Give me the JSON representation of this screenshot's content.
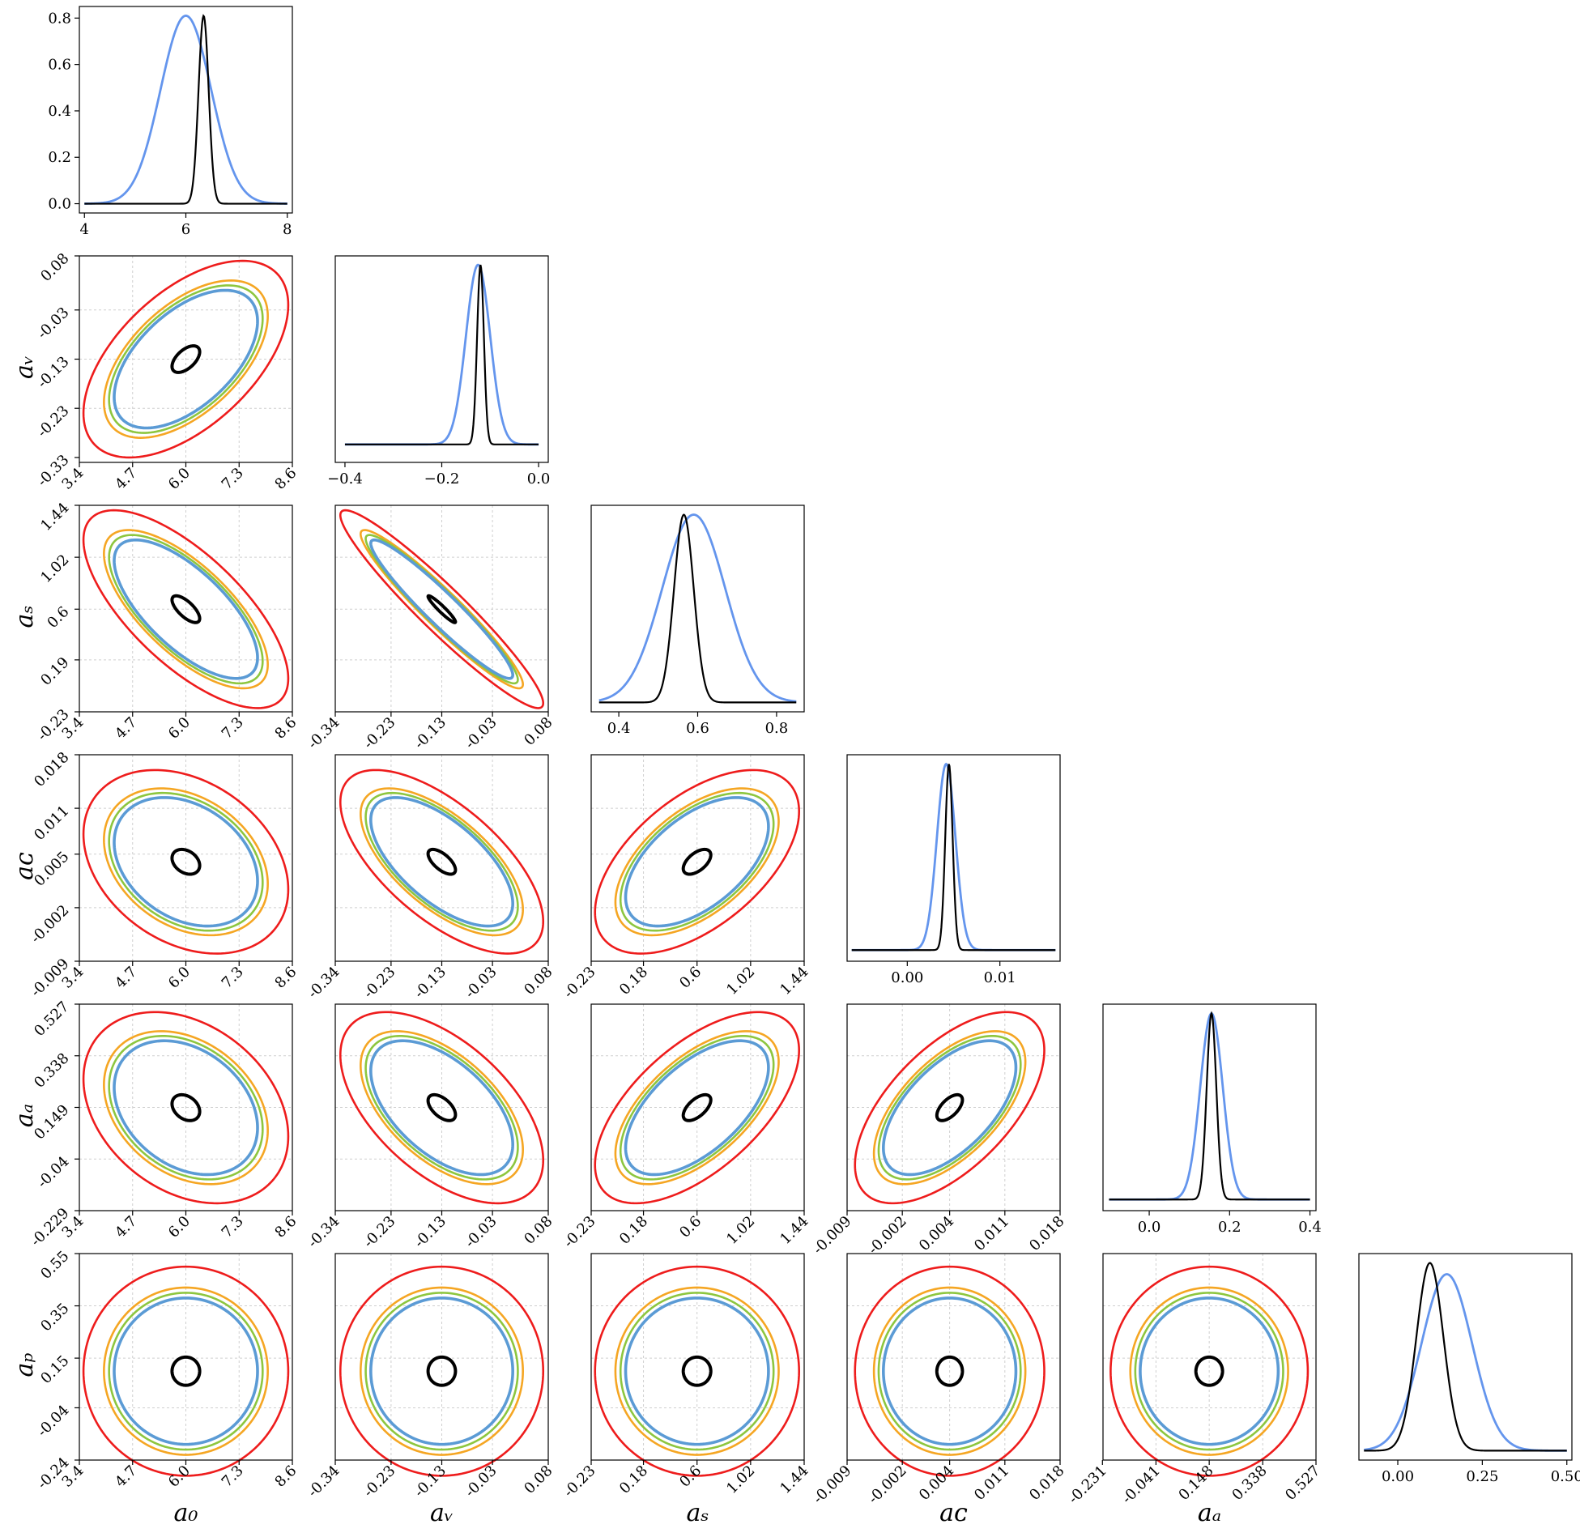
{
  "chart_data": {
    "type": "corner",
    "parameters": [
      {
        "name": "a0",
        "label": "a₀"
      },
      {
        "name": "aV",
        "label": "aᵥ"
      },
      {
        "name": "aS",
        "label": "aₛ"
      },
      {
        "name": "aC",
        "label": "aᴄ"
      },
      {
        "name": "aA",
        "label": "aₐ"
      },
      {
        "name": "aP",
        "label": "aₚ"
      }
    ],
    "centers": [
      6.0,
      -0.13,
      0.6,
      0.004,
      0.148,
      0.1
    ],
    "series_colors": {
      "contour_outer": "#ee1c1c",
      "contour_2": "#f5a623",
      "contour_3": "#8dc63f",
      "contour_4": "#5b9bd5",
      "contour_inner": "#000000",
      "marginal_wide": "#6495ed",
      "marginal_narrow": "#000000"
    },
    "diagonal": [
      {
        "param": "a0",
        "xlim": [
          3.9,
          8.1
        ],
        "ylim": [
          -0.04,
          0.85
        ],
        "xticks": [
          "4",
          "6",
          "8"
        ],
        "xtick_values": [
          4,
          6,
          8
        ],
        "yticks": [
          "0.0",
          "0.2",
          "0.4",
          "0.6",
          "0.8"
        ],
        "ytick_values": [
          0.0,
          0.2,
          0.4,
          0.6,
          0.8
        ],
        "curve_range": [
          4,
          8
        ],
        "wide": {
          "mean": 6.0,
          "sd": 0.5,
          "peak": 0.81
        },
        "narrow": {
          "mean": 6.35,
          "sd": 0.1,
          "peak": 0.81
        }
      },
      {
        "param": "aV",
        "xlim": [
          -0.42,
          0.02
        ],
        "ylim": [
          -0.1,
          1.05
        ],
        "xticks": [
          "−0.4",
          "−0.2",
          "0.0"
        ],
        "xtick_values": [
          -0.4,
          -0.2,
          0.0
        ],
        "curve_range": [
          -0.4,
          0.0
        ],
        "wide": {
          "mean": -0.125,
          "sd": 0.025,
          "peak": 1.0
        },
        "narrow": {
          "mean": -0.12,
          "sd": 0.007,
          "peak": 1.0
        }
      },
      {
        "param": "aS",
        "xlim": [
          0.33,
          0.87
        ],
        "ylim": [
          -0.05,
          1.05
        ],
        "xticks": [
          "0.4",
          "0.6",
          "0.8"
        ],
        "xtick_values": [
          0.4,
          0.6,
          0.8
        ],
        "curve_range": [
          0.35,
          0.85
        ],
        "wide": {
          "mean": 0.59,
          "sd": 0.08,
          "peak": 1.0
        },
        "narrow": {
          "mean": 0.565,
          "sd": 0.025,
          "peak": 1.0
        }
      },
      {
        "param": "aC",
        "xlim": [
          -0.0065,
          0.0165
        ],
        "ylim": [
          -0.06,
          1.05
        ],
        "xticks": [
          "0.00",
          "0.01"
        ],
        "xtick_values": [
          0.0,
          0.01
        ],
        "curve_range": [
          -0.006,
          0.016
        ],
        "wide": {
          "mean": 0.0042,
          "sd": 0.001,
          "peak": 1.0
        },
        "narrow": {
          "mean": 0.0045,
          "sd": 0.0004,
          "peak": 1.0
        }
      },
      {
        "param": "aA",
        "xlim": [
          -0.115,
          0.415
        ],
        "ylim": [
          -0.06,
          1.05
        ],
        "xticks": [
          "0.0",
          "0.2",
          "0.4"
        ],
        "xtick_values": [
          0.0,
          0.2,
          0.4
        ],
        "curve_range": [
          -0.1,
          0.4
        ],
        "wide": {
          "mean": 0.155,
          "sd": 0.028,
          "peak": 1.0
        },
        "narrow": {
          "mean": 0.155,
          "sd": 0.012,
          "peak": 1.0
        }
      },
      {
        "param": "aP",
        "xlim": [
          -0.115,
          0.515
        ],
        "ylim": [
          -0.05,
          1.05
        ],
        "xticks": [
          "0.00",
          "0.25",
          "0.50"
        ],
        "xtick_values": [
          0.0,
          0.25,
          0.5
        ],
        "curve_range": [
          -0.1,
          0.5
        ],
        "wide": {
          "mean": 0.145,
          "sd": 0.075,
          "peak": 0.94
        },
        "narrow": {
          "mean": 0.095,
          "sd": 0.04,
          "peak": 1.0
        }
      }
    ],
    "offdiag_axes": [
      {
        "param": "a0",
        "lim": [
          3.4,
          8.6
        ],
        "ticks": [
          "3.4",
          "4.7",
          "6.0",
          "7.3",
          "8.6"
        ],
        "tick_values": [
          3.4,
          4.7,
          6.0,
          7.3,
          8.6
        ]
      },
      {
        "param": "aV",
        "lim": [
          -0.34,
          0.08
        ],
        "ticks": [
          "-0.34",
          "-0.23",
          "-0.13",
          "-0.03",
          "0.08"
        ],
        "tick_values": [
          -0.34,
          -0.23,
          -0.13,
          -0.03,
          0.08
        ],
        "yticks": [
          "-0.33",
          "-0.23",
          "-0.13",
          "-0.03",
          "0.08"
        ],
        "ytick_values": [
          -0.33,
          -0.23,
          -0.13,
          -0.03,
          0.08
        ]
      },
      {
        "param": "aS",
        "lim": [
          -0.23,
          1.44
        ],
        "ticks": [
          "-0.23",
          "0.18",
          "0.6",
          "1.02",
          "1.44"
        ],
        "tick_values": [
          -0.23,
          0.18,
          0.6,
          1.02,
          1.44
        ],
        "yticks": [
          "-0.23",
          "0.19",
          "0.6",
          "1.02",
          "1.44"
        ],
        "ytick_values": [
          -0.23,
          0.19,
          0.6,
          1.02,
          1.44
        ]
      },
      {
        "param": "aC",
        "lim": [
          -0.009,
          0.018
        ],
        "ticks": [
          "-0.009",
          "-0.002",
          "0.004",
          "0.011",
          "0.018"
        ],
        "tick_values": [
          -0.009,
          -0.002,
          0.004,
          0.011,
          0.018
        ],
        "yticks": [
          "-0.009",
          "-0.002",
          "0.005",
          "0.011",
          "0.018"
        ],
        "ytick_values": [
          -0.009,
          -0.002,
          0.005,
          0.011,
          0.018
        ]
      },
      {
        "param": "aA",
        "lim": [
          -0.229,
          0.527
        ],
        "ticks": [
          "-0.231",
          "-0.041",
          "0.148",
          "0.338",
          "0.527"
        ],
        "tick_values": [
          -0.231,
          -0.041,
          0.148,
          0.338,
          0.527
        ],
        "yticks": [
          "-0.229",
          "-0.04",
          "0.149",
          "0.338",
          "0.527"
        ],
        "ytick_values": [
          -0.229,
          -0.04,
          0.149,
          0.338,
          0.527
        ]
      },
      {
        "param": "aP",
        "lim": [
          -0.24,
          0.55
        ],
        "yticks": [
          "-0.24",
          "-0.04",
          "0.15",
          "0.35",
          "0.55"
        ],
        "ytick_values": [
          -0.24,
          -0.04,
          0.15,
          0.35,
          0.55
        ]
      }
    ],
    "contour_scales": [
      1.0,
      0.8,
      0.75,
      0.7,
      0.15
    ],
    "sigma_scales": [
      1.0,
      0.05,
      0.1,
      0.05,
      0.05,
      0.15
    ],
    "half_widths": [
      2.5,
      0.2,
      0.8,
      0.012,
      0.35,
      0.4
    ],
    "correlations": [
      [
        1.0,
        0.55,
        -0.7,
        -0.3,
        -0.3,
        0.0
      ],
      [
        0.55,
        1.0,
        -0.95,
        -0.65,
        -0.55,
        0.0
      ],
      [
        -0.7,
        -0.95,
        1.0,
        0.55,
        0.6,
        0.0
      ],
      [
        -0.3,
        -0.65,
        0.55,
        1.0,
        0.6,
        0.0
      ],
      [
        -0.3,
        -0.55,
        0.6,
        0.6,
        1.0,
        0.0
      ],
      [
        0.0,
        0.0,
        0.0,
        0.0,
        0.0,
        1.0
      ]
    ]
  }
}
